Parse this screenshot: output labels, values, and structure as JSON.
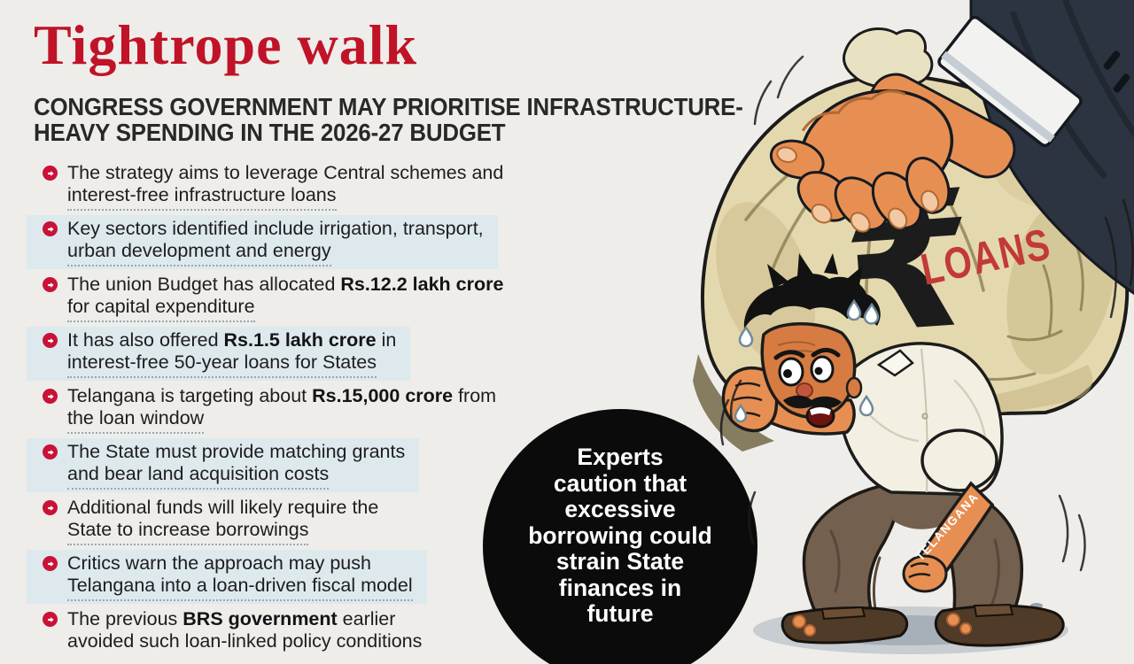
{
  "theme": {
    "accent_red": "#c01328",
    "bullet_red": "#c81238",
    "highlight": "#dde9ed",
    "page_bg": "#eeedea",
    "callout_bg": "#0b0b0b",
    "callout_text": "#ffffff",
    "text": "#1d1d1f",
    "loans_red": "#c23a38"
  },
  "header": {
    "title": "Tightrope walk",
    "subtitle": "CONGRESS GOVERNMENT MAY PRIORITISE INFRASTRUCTURE-\nHEAVY SPENDING IN THE 2026-27 BUDGET"
  },
  "list": {
    "items": [
      {
        "highlight": false,
        "lines": [
          [
            {
              "t": "The strategy aims to leverage Central schemes and"
            }
          ],
          [
            {
              "t": "interest-free infrastructure loans"
            }
          ]
        ]
      },
      {
        "highlight": true,
        "lines": [
          [
            {
              "t": "Key sectors identified include irrigation, transport,"
            }
          ],
          [
            {
              "t": "urban development and energy"
            }
          ]
        ]
      },
      {
        "highlight": false,
        "lines": [
          [
            {
              "t": "The union Budget has allocated "
            },
            {
              "t": "Rs.12.2 lakh crore",
              "b": true
            }
          ],
          [
            {
              "t": "for capital expenditure"
            }
          ]
        ]
      },
      {
        "highlight": true,
        "lines": [
          [
            {
              "t": "It has also offered "
            },
            {
              "t": "Rs.1.5 lakh crore",
              "b": true
            },
            {
              "t": " in"
            }
          ],
          [
            {
              "t": "interest-free 50-year loans for States"
            }
          ]
        ]
      },
      {
        "highlight": false,
        "lines": [
          [
            {
              "t": "Telangana is targeting about "
            },
            {
              "t": "Rs.15,000 crore",
              "b": true
            },
            {
              "t": " from"
            }
          ],
          [
            {
              "t": "the loan window"
            }
          ]
        ]
      },
      {
        "highlight": true,
        "lines": [
          [
            {
              "t": "The State must provide matching grants"
            }
          ],
          [
            {
              "t": "and bear land acquisition costs"
            }
          ]
        ]
      },
      {
        "highlight": false,
        "lines": [
          [
            {
              "t": "Additional funds will likely require the"
            }
          ],
          [
            {
              "t": "State to increase borrowings"
            }
          ]
        ]
      },
      {
        "highlight": true,
        "lines": [
          [
            {
              "t": "Critics warn the approach may push"
            }
          ],
          [
            {
              "t": "Telangana into a loan-driven fiscal model"
            }
          ]
        ]
      },
      {
        "highlight": false,
        "lines": [
          [
            {
              "t": "The previous "
            },
            {
              "t": "BRS government",
              "b": true
            },
            {
              "t": " earlier"
            }
          ],
          [
            {
              "t": "avoided such loan-linked policy conditions"
            }
          ]
        ]
      }
    ]
  },
  "callout": {
    "text": "Experts\ncaution that\nexcessive\nborrowing could\nstrain State\nfinances in\nfuture"
  },
  "illustration": {
    "bag_symbol": "₹",
    "bag_label": "LOANS",
    "arm_label": "TELANGANA"
  }
}
